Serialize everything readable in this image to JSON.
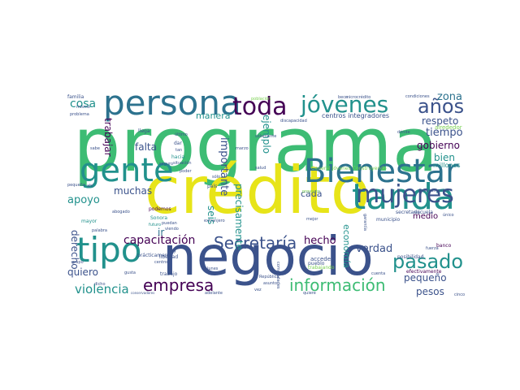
{
  "palette": {
    "purple": "#440154",
    "indigo": "#3b528b",
    "blue": "#2c728e",
    "teal": "#21918c",
    "green": "#3dbc74",
    "lime": "#7ad151",
    "yellow": "#e7e419"
  },
  "words": [
    {
      "id": "programa",
      "text": "programa",
      "size": 92,
      "color": "green"
    },
    {
      "id": "credito",
      "text": "crédito",
      "size": 80,
      "color": "yellow"
    },
    {
      "id": "negocio",
      "text": "negocio",
      "size": 66,
      "color": "indigo"
    },
    {
      "id": "persona",
      "text": "persona",
      "size": 42,
      "color": "blue"
    },
    {
      "id": "gente",
      "text": "gente",
      "size": 40,
      "color": "teal"
    },
    {
      "id": "bienestar",
      "text": "Bienestar",
      "size": 40,
      "color": "blue"
    },
    {
      "id": "tanda",
      "text": "tanda",
      "size": 44,
      "color": "teal"
    },
    {
      "id": "tipo",
      "text": "tipo",
      "size": 42,
      "color": "teal"
    },
    {
      "id": "toda",
      "text": "toda",
      "size": 30,
      "color": "purple"
    },
    {
      "id": "jovenes",
      "text": "jóvenes",
      "size": 28,
      "color": "teal"
    },
    {
      "id": "mujeres",
      "text": "mujeres",
      "size": 30,
      "color": "indigo"
    },
    {
      "id": "anos",
      "text": "años",
      "size": 24,
      "color": "indigo"
    },
    {
      "id": "pasado",
      "text": "pasado",
      "size": 24,
      "color": "teal"
    },
    {
      "id": "secretaria",
      "text": "Secretaría",
      "size": 20,
      "color": "indigo"
    },
    {
      "id": "empresa",
      "text": "empresa",
      "size": 20,
      "color": "purple"
    },
    {
      "id": "informacion",
      "text": "información",
      "size": 20,
      "color": "green"
    },
    {
      "id": "capacitacion",
      "text": "capacitación",
      "size": 14,
      "color": "purple"
    },
    {
      "id": "violencia",
      "text": "violencia",
      "size": 15,
      "color": "teal"
    },
    {
      "id": "cosa",
      "text": "cosa",
      "size": 14,
      "color": "teal"
    },
    {
      "id": "manera",
      "text": "manera",
      "size": 11,
      "color": "teal"
    },
    {
      "id": "trabajar",
      "text": "trabajar",
      "size": 12,
      "color": "purple"
    },
    {
      "id": "falta",
      "text": "falta",
      "size": 12,
      "color": "indigo"
    },
    {
      "id": "muchas",
      "text": "muchas",
      "size": 12,
      "color": "indigo"
    },
    {
      "id": "ir",
      "text": "ir",
      "size": 12,
      "color": "blue"
    },
    {
      "id": "apoyo",
      "text": "apoyo",
      "size": 13,
      "color": "teal"
    },
    {
      "id": "derecho",
      "text": "derecho",
      "size": 12,
      "color": "indigo"
    },
    {
      "id": "parte",
      "text": "parte",
      "size": 13,
      "color": "lime"
    },
    {
      "id": "quiero",
      "text": "quiero",
      "size": 12,
      "color": "indigo"
    },
    {
      "id": "hecho",
      "text": "hecho",
      "size": 13,
      "color": "purple"
    },
    {
      "id": "seis",
      "text": "seis",
      "size": 12,
      "color": "teal"
    },
    {
      "id": "importante",
      "text": "importante",
      "size": 13,
      "color": "indigo"
    },
    {
      "id": "precisamente",
      "text": "precisamente",
      "size": 12,
      "color": "teal"
    },
    {
      "id": "ejemplo",
      "text": "ejemplo",
      "size": 12,
      "color": "teal"
    },
    {
      "id": "cada",
      "text": "cada",
      "size": 11,
      "color": "indigo"
    },
    {
      "id": "economia",
      "text": "economía",
      "size": 11,
      "color": "teal"
    },
    {
      "id": "verdad",
      "text": "verdad",
      "size": 13,
      "color": "indigo"
    },
    {
      "id": "pequeno",
      "text": "pequeño",
      "size": 12,
      "color": "indigo"
    },
    {
      "id": "pesos",
      "text": "pesos",
      "size": 12,
      "color": "indigo"
    },
    {
      "id": "zona",
      "text": "zona",
      "size": 13,
      "color": "blue"
    },
    {
      "id": "respeto",
      "text": "respeto",
      "size": 12,
      "color": "indigo"
    },
    {
      "id": "tiempo",
      "text": "tiempo",
      "size": 13,
      "color": "indigo"
    },
    {
      "id": "gobierno",
      "text": "gobierno",
      "size": 12,
      "color": "purple"
    },
    {
      "id": "bien",
      "text": "bien",
      "size": 12,
      "color": "teal"
    },
    {
      "id": "medio",
      "text": "medio",
      "size": 10,
      "color": "purple"
    },
    {
      "id": "centros_integradores",
      "text": "centros integradores",
      "size": 8,
      "color": "indigo"
    },
    {
      "id": "millones",
      "text": "millones",
      "size": 8,
      "color": "teal"
    },
    {
      "id": "alrededor",
      "text": "alrededor",
      "size": 7,
      "color": "lime"
    },
    {
      "id": "general_jovenes_construyendo",
      "text": "General Jóvenes Construyendo",
      "size": 6,
      "color": "lime"
    },
    {
      "id": "escuela",
      "text": "escuela",
      "size": 6,
      "color": "indigo"
    },
    {
      "id": "municipio",
      "text": "municipio",
      "size": 6,
      "color": "indigo"
    },
    {
      "id": "banco",
      "text": "banco",
      "size": 6,
      "color": "purple"
    },
    {
      "id": "acceder",
      "text": "acceder",
      "size": 7,
      "color": "indigo"
    },
    {
      "id": "pueblo",
      "text": "pueblo",
      "size": 6,
      "color": "indigo"
    },
    {
      "id": "trabajando",
      "text": "trabajando",
      "size": 6,
      "color": "lime"
    },
    {
      "id": "efectivamente",
      "text": "efectivamente",
      "size": 6,
      "color": "purple"
    },
    {
      "id": "posibilidad",
      "text": "posibilidad",
      "size": 6,
      "color": "indigo"
    },
    {
      "id": "familia",
      "text": "familia",
      "size": 6,
      "color": "indigo"
    },
    {
      "id": "mismo",
      "text": "mismo",
      "size": 5,
      "color": "indigo"
    },
    {
      "id": "problema",
      "text": "problema",
      "size": 5,
      "color": "indigo"
    },
    {
      "id": "poblacion",
      "text": "población",
      "size": 5,
      "color": "lime"
    },
    {
      "id": "beca",
      "text": "beca",
      "size": 5,
      "color": "indigo"
    },
    {
      "id": "microcredito",
      "text": "microcrédito",
      "size": 5,
      "color": "indigo"
    },
    {
      "id": "condiciones",
      "text": "condiciones",
      "size": 5,
      "color": "indigo"
    },
    {
      "id": "donde",
      "text": "dónde",
      "size": 5,
      "color": "indigo"
    },
    {
      "id": "llega",
      "text": "llega",
      "size": 6,
      "color": "indigo"
    },
    {
      "id": "ultimo",
      "text": "último",
      "size": 5,
      "color": "indigo"
    },
    {
      "id": "dar",
      "text": "dar",
      "size": 6,
      "color": "indigo"
    },
    {
      "id": "tan",
      "text": "tan",
      "size": 5,
      "color": "indigo"
    },
    {
      "id": "solamente",
      "text": "solamente",
      "size": 5,
      "color": "indigo"
    },
    {
      "id": "discapacidad",
      "text": "discapacidad",
      "size": 5,
      "color": "indigo"
    },
    {
      "id": "marzo",
      "text": "marzo",
      "size": 5,
      "color": "indigo"
    },
    {
      "id": "hacia",
      "text": "hacia",
      "size": 6,
      "color": "teal"
    },
    {
      "id": "sabe",
      "text": "sabe",
      "size": 5,
      "color": "indigo"
    },
    {
      "id": "situacion",
      "text": "situación",
      "size": 5,
      "color": "indigo"
    },
    {
      "id": "seguro",
      "text": "seguro",
      "size": 5,
      "color": "indigo"
    },
    {
      "id": "poder",
      "text": "poder",
      "size": 5,
      "color": "indigo"
    },
    {
      "id": "pais",
      "text": "país",
      "size": 6,
      "color": "indigo"
    },
    {
      "id": "solo",
      "text": "sólo",
      "size": 5,
      "color": "indigo"
    },
    {
      "id": "pequena",
      "text": "pequeña",
      "size": 5,
      "color": "indigo"
    },
    {
      "id": "ahi",
      "text": "ahí",
      "size": 5,
      "color": "indigo"
    },
    {
      "id": "podemos",
      "text": "podemos",
      "size": 6,
      "color": "purple"
    },
    {
      "id": "sonora",
      "text": "Sonora",
      "size": 6,
      "color": "teal"
    },
    {
      "id": "abogado",
      "text": "abogado",
      "size": 5,
      "color": "indigo"
    },
    {
      "id": "mayor",
      "text": "mayor",
      "size": 6,
      "color": "teal"
    },
    {
      "id": "futuro",
      "text": "futuro",
      "size": 5,
      "color": "teal"
    },
    {
      "id": "puedan",
      "text": "puedan",
      "size": 5,
      "color": "indigo"
    },
    {
      "id": "viendo",
      "text": "viendo",
      "size": 5,
      "color": "indigo"
    },
    {
      "id": "palabra",
      "text": "palabra",
      "size": 5,
      "color": "indigo"
    },
    {
      "id": "hoy",
      "text": "hoy",
      "size": 6,
      "color": "indigo"
    },
    {
      "id": "extranjero",
      "text": "extranjero",
      "size": 5,
      "color": "indigo"
    },
    {
      "id": "mejor",
      "text": "mejor",
      "size": 5,
      "color": "indigo"
    },
    {
      "id": "grupo",
      "text": "grupo",
      "size": 5,
      "color": "indigo"
    },
    {
      "id": "libertad",
      "text": "libertad",
      "size": 6,
      "color": "indigo"
    },
    {
      "id": "trabajo",
      "text": "trabajo",
      "size": 6,
      "color": "indigo"
    },
    {
      "id": "practicamente",
      "text": "prácticamente",
      "size": 6,
      "color": "indigo"
    },
    {
      "id": "lunes",
      "text": "lunes",
      "size": 5,
      "color": "indigo"
    },
    {
      "id": "republica",
      "text": "República",
      "size": 5,
      "color": "indigo"
    },
    {
      "id": "asunto",
      "text": "asunto",
      "size": 5,
      "color": "indigo"
    },
    {
      "id": "dicho",
      "text": "dicho",
      "size": 5,
      "color": "indigo"
    },
    {
      "id": "adelante",
      "text": "adelante",
      "size": 5,
      "color": "indigo"
    },
    {
      "id": "conservadores",
      "text": "conservadores",
      "size": 4,
      "color": "indigo"
    },
    {
      "id": "gusta",
      "text": "gusta",
      "size": 5,
      "color": "indigo"
    },
    {
      "id": "comunidades",
      "text": "comunidades",
      "size": 5,
      "color": "indigo"
    },
    {
      "id": "cinco",
      "text": "cinco",
      "size": 5,
      "color": "indigo"
    },
    {
      "id": "quiere",
      "text": "quiere",
      "size": 5,
      "color": "indigo"
    },
    {
      "id": "garantia",
      "text": "garantía",
      "size": 5,
      "color": "indigo"
    },
    {
      "id": "medicamentos",
      "text": "medicamentos",
      "size": 5,
      "color": "indigo"
    },
    {
      "id": "unico",
      "text": "único",
      "size": 5,
      "color": "indigo"
    },
    {
      "id": "vez",
      "text": "vez",
      "size": 5,
      "color": "indigo"
    },
    {
      "id": "proyecto",
      "text": "proyecto",
      "size": 5,
      "color": "lime"
    },
    {
      "id": "fuerza",
      "text": "fuerza",
      "size": 5,
      "color": "indigo"
    },
    {
      "id": "centro",
      "text": "centro",
      "size": 5,
      "color": "indigo"
    },
    {
      "id": "cuenta",
      "text": "cuenta",
      "size": 5,
      "color": "indigo"
    },
    {
      "id": "salud",
      "text": "salud",
      "size": 5,
      "color": "indigo"
    },
    {
      "id": "secretaria_min",
      "text": "secretaría",
      "size": 6,
      "color": "indigo"
    }
  ]
}
